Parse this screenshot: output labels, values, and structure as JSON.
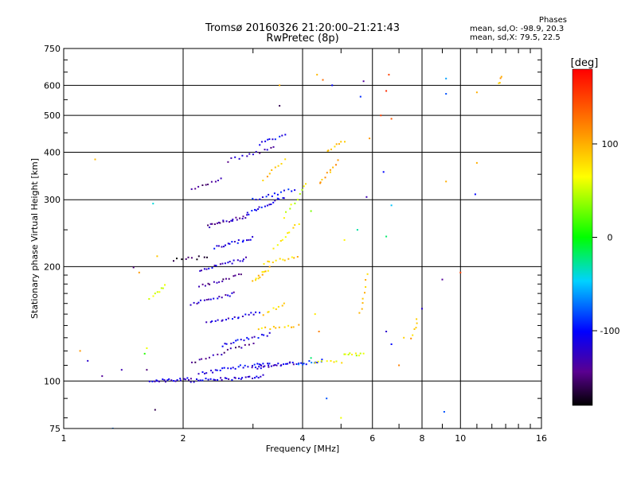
{
  "title": "Tromsø 20160326 21:20:00–21:21:43",
  "subtitle": "RwPretec (8p)",
  "phases": {
    "title": "Phases",
    "line1": "mean, sd,O:  -98.9, 20.3",
    "line2": "mean, sd,X:  79.5, 22.5"
  },
  "colorbar": {
    "label": "[deg]",
    "ticks": [
      {
        "value": 100,
        "label": "100"
      },
      {
        "value": 0,
        "label": "0"
      },
      {
        "value": -100,
        "label": "-100"
      }
    ],
    "range": [
      -180,
      180
    ]
  },
  "chart_data": {
    "type": "scatter",
    "xlabel": "Frequency [MHz]",
    "ylabel": "Stationary phase Virtual Height [km]",
    "xscale": "log",
    "yscale": "log",
    "xlim": [
      1,
      16
    ],
    "ylim": [
      75,
      750
    ],
    "xticks": [
      {
        "value": 1,
        "label": "1"
      },
      {
        "value": 2,
        "label": "2"
      },
      {
        "value": 4,
        "label": "4"
      },
      {
        "value": 6,
        "label": "6"
      },
      {
        "value": 8,
        "label": "8"
      },
      {
        "value": 10,
        "label": "10"
      },
      {
        "value": 16,
        "label": "16"
      }
    ],
    "yticks": [
      {
        "value": 75,
        "label": "75"
      },
      {
        "value": 100,
        "label": "100"
      },
      {
        "value": 200,
        "label": "200"
      },
      {
        "value": 300,
        "label": "300"
      },
      {
        "value": 400,
        "label": "400"
      },
      {
        "value": 500,
        "label": "500"
      },
      {
        "value": 600,
        "label": "600"
      },
      {
        "value": 750,
        "label": "750"
      }
    ],
    "grid": true,
    "color_by": "phase [deg]",
    "traces": [
      {
        "f": [
          1.65,
          2.1
        ],
        "h": [
          100,
          101
        ],
        "p": -120,
        "n": 22
      },
      {
        "f": [
          2.1,
          3.2
        ],
        "h": [
          100,
          103
        ],
        "p": -115,
        "n": 32
      },
      {
        "f": [
          2.2,
          3.3
        ],
        "h": [
          105,
          112
        ],
        "p": -110,
        "n": 28
      },
      {
        "f": [
          3.0,
          3.9
        ],
        "h": [
          108,
          112
        ],
        "p": -120,
        "n": 26
      },
      {
        "f": [
          3.9,
          4.5
        ],
        "h": [
          111,
          113
        ],
        "p": -85,
        "n": 12
      },
      {
        "f": [
          4.3,
          5.0
        ],
        "h": [
          112,
          112
        ],
        "p": 75,
        "n": 8
      },
      {
        "f": [
          5.1,
          5.7
        ],
        "h": [
          117,
          118
        ],
        "p": 55,
        "n": 10
      },
      {
        "f": [
          2.1,
          3.0
        ],
        "h": [
          112,
          126
        ],
        "p": -140,
        "n": 18
      },
      {
        "f": [
          2.5,
          3.3
        ],
        "h": [
          124,
          133
        ],
        "p": -110,
        "n": 18
      },
      {
        "f": [
          3.1,
          3.9
        ],
        "h": [
          137,
          140
        ],
        "p": 85,
        "n": 12
      },
      {
        "f": [
          2.3,
          3.1
        ],
        "h": [
          142,
          152
        ],
        "p": -115,
        "n": 20
      },
      {
        "f": [
          2.1,
          2.7
        ],
        "h": [
          160,
          170
        ],
        "p": -125,
        "n": 18
      },
      {
        "f": [
          2.2,
          2.8
        ],
        "h": [
          178,
          190
        ],
        "p": -140,
        "n": 16
      },
      {
        "f": [
          2.2,
          2.9
        ],
        "h": [
          195,
          210
        ],
        "p": -120,
        "n": 20
      },
      {
        "f": [
          1.9,
          2.3
        ],
        "h": [
          208,
          212
        ],
        "p": -160,
        "n": 10
      },
      {
        "f": [
          2.4,
          3.0
        ],
        "h": [
          225,
          238
        ],
        "p": -110,
        "n": 18
      },
      {
        "f": [
          2.3,
          2.9
        ],
        "h": [
          255,
          272
        ],
        "p": -135,
        "n": 22
      },
      {
        "f": [
          2.9,
          3.6
        ],
        "h": [
          275,
          305
        ],
        "p": -110,
        "n": 18
      },
      {
        "f": [
          2.1,
          2.5
        ],
        "h": [
          320,
          340
        ],
        "p": -140,
        "n": 10
      },
      {
        "f": [
          2.6,
          3.4
        ],
        "h": [
          380,
          410
        ],
        "p": -130,
        "n": 14
      },
      {
        "f": [
          3.1,
          3.6
        ],
        "h": [
          420,
          445
        ],
        "p": -110,
        "n": 10
      },
      {
        "f": [
          3.0,
          3.8
        ],
        "h": [
          300,
          320
        ],
        "p": -100,
        "n": 14
      },
      {
        "f": [
          3.0,
          3.3
        ],
        "h": [
          182,
          198
        ],
        "p": 90,
        "n": 12
      },
      {
        "f": [
          3.2,
          3.9
        ],
        "h": [
          205,
          212
        ],
        "p": 85,
        "n": 12
      },
      {
        "f": [
          3.4,
          3.9
        ],
        "h": [
          225,
          260
        ],
        "p": 70,
        "n": 10
      },
      {
        "f": [
          3.6,
          4.1
        ],
        "h": [
          270,
          330
        ],
        "p": 60,
        "n": 10
      },
      {
        "f": [
          3.2,
          3.6
        ],
        "h": [
          340,
          380
        ],
        "p": 95,
        "n": 8
      },
      {
        "f": [
          4.4,
          4.9
        ],
        "h": [
          330,
          380
        ],
        "p": 100,
        "n": 10
      },
      {
        "f": [
          4.6,
          5.1
        ],
        "h": [
          400,
          430
        ],
        "p": 95,
        "n": 8
      },
      {
        "f": [
          1.65,
          1.8
        ],
        "h": [
          165,
          178
        ],
        "p": 65,
        "n": 8
      },
      {
        "f": [
          3.2,
          3.6
        ],
        "h": [
          150,
          160
        ],
        "p": 80,
        "n": 8
      },
      {
        "f": [
          5.6,
          5.8
        ],
        "h": [
          150,
          190
        ],
        "p": 90,
        "n": 8
      },
      {
        "f": [
          7.5,
          7.8
        ],
        "h": [
          130,
          145
        ],
        "p": 95,
        "n": 6
      },
      {
        "f": [
          12.5,
          12.6
        ],
        "h": [
          605,
          630
        ],
        "p": 100,
        "n": 4
      }
    ],
    "points": [
      {
        "f": 1.1,
        "h": 120,
        "p": 110
      },
      {
        "f": 1.15,
        "h": 113,
        "p": -120
      },
      {
        "f": 1.25,
        "h": 103,
        "p": -140
      },
      {
        "f": 1.4,
        "h": 107,
        "p": -130
      },
      {
        "f": 1.5,
        "h": 199,
        "p": -150
      },
      {
        "f": 1.55,
        "h": 193,
        "p": 110
      },
      {
        "f": 1.6,
        "h": 118,
        "p": 10
      },
      {
        "f": 1.62,
        "h": 122,
        "p": 60
      },
      {
        "f": 1.68,
        "h": 293,
        "p": -40
      },
      {
        "f": 1.7,
        "h": 84,
        "p": -160
      },
      {
        "f": 1.72,
        "h": 213,
        "p": 90
      },
      {
        "f": 1.62,
        "h": 107,
        "p": -150
      },
      {
        "f": 1.2,
        "h": 383,
        "p": 95
      },
      {
        "f": 3.5,
        "h": 530,
        "p": -160
      },
      {
        "f": 3.5,
        "h": 600,
        "p": 100
      },
      {
        "f": 4.35,
        "h": 640,
        "p": 95
      },
      {
        "f": 4.5,
        "h": 620,
        "p": 130
      },
      {
        "f": 4.75,
        "h": 600,
        "p": -100
      },
      {
        "f": 5.6,
        "h": 560,
        "p": -90
      },
      {
        "f": 5.7,
        "h": 615,
        "p": -140
      },
      {
        "f": 6.3,
        "h": 500,
        "p": 150
      },
      {
        "f": 6.5,
        "h": 580,
        "p": 160
      },
      {
        "f": 6.7,
        "h": 490,
        "p": 140
      },
      {
        "f": 6.6,
        "h": 640,
        "p": 150
      },
      {
        "f": 6.4,
        "h": 355,
        "p": -100
      },
      {
        "f": 6.7,
        "h": 290,
        "p": -50
      },
      {
        "f": 6.5,
        "h": 240,
        "p": -20
      },
      {
        "f": 5.8,
        "h": 305,
        "p": -130
      },
      {
        "f": 5.5,
        "h": 250,
        "p": -30
      },
      {
        "f": 5.9,
        "h": 435,
        "p": 110
      },
      {
        "f": 6.5,
        "h": 135,
        "p": -120
      },
      {
        "f": 6.7,
        "h": 125,
        "p": -100
      },
      {
        "f": 7.0,
        "h": 110,
        "p": 120
      },
      {
        "f": 7.2,
        "h": 130,
        "p": 85
      },
      {
        "f": 8.0,
        "h": 155,
        "p": -120
      },
      {
        "f": 9.0,
        "h": 185,
        "p": -140
      },
      {
        "f": 9.1,
        "h": 83,
        "p": -80
      },
      {
        "f": 9.2,
        "h": 625,
        "p": -60
      },
      {
        "f": 9.2,
        "h": 570,
        "p": -80
      },
      {
        "f": 10.0,
        "h": 193,
        "p": 150
      },
      {
        "f": 9.2,
        "h": 335,
        "p": 100
      },
      {
        "f": 10.9,
        "h": 310,
        "p": -100
      },
      {
        "f": 11.0,
        "h": 575,
        "p": 100
      },
      {
        "f": 11.0,
        "h": 375,
        "p": 100
      },
      {
        "f": 5.0,
        "h": 80,
        "p": 60
      },
      {
        "f": 4.6,
        "h": 90,
        "p": -80
      },
      {
        "f": 4.2,
        "h": 115,
        "p": -20
      },
      {
        "f": 4.3,
        "h": 150,
        "p": 75
      },
      {
        "f": 4.4,
        "h": 135,
        "p": 120
      },
      {
        "f": 4.2,
        "h": 280,
        "p": 30
      },
      {
        "f": 5.1,
        "h": 235,
        "p": 70
      },
      {
        "f": 1.33,
        "h": 75,
        "p": -70
      }
    ]
  }
}
